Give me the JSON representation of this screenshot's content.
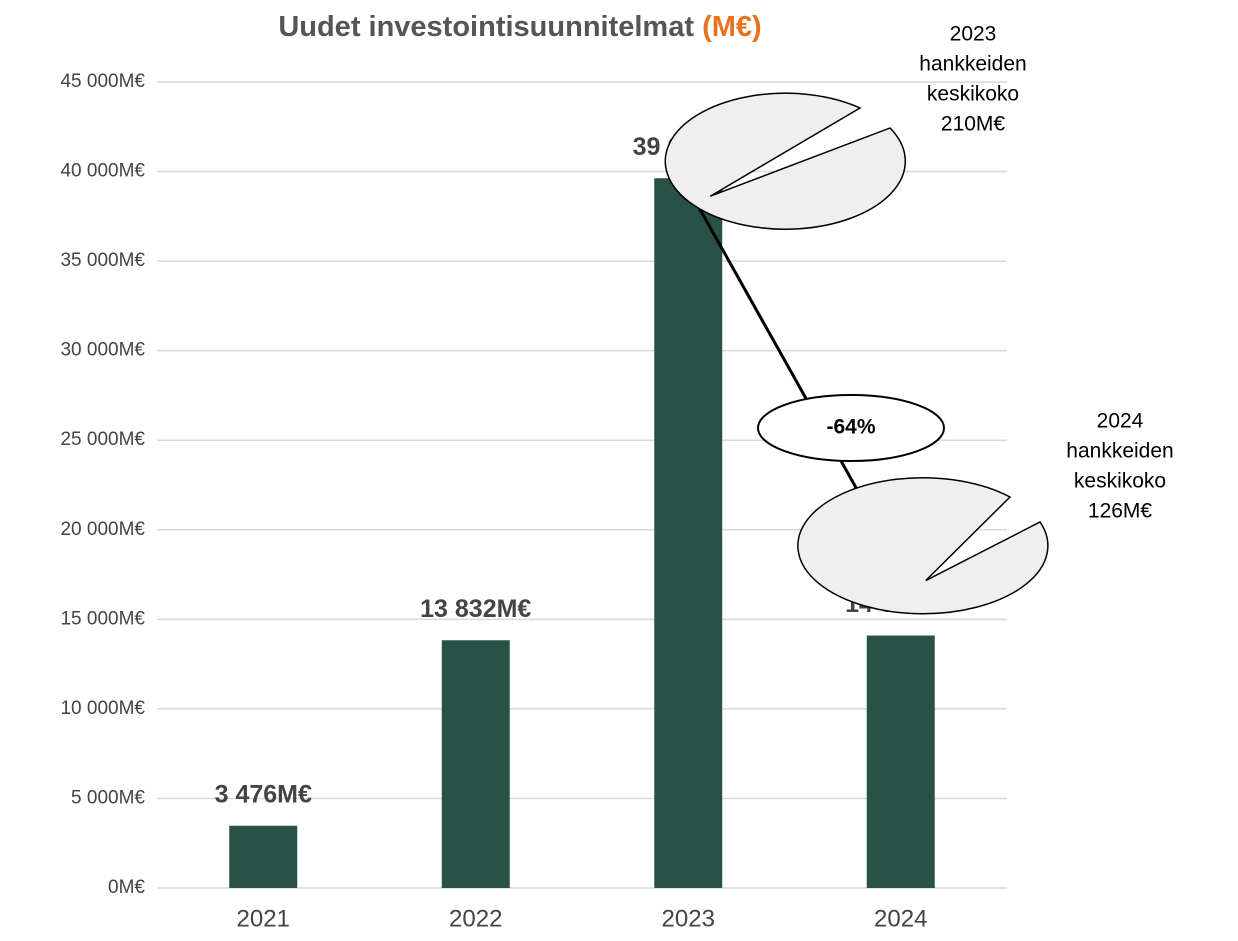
{
  "chart_data": {
    "type": "bar",
    "title": "Uudet investointisuunnitelmat",
    "title_unit": "(M€)",
    "title_unit_color": "#e8731e",
    "categories": [
      "2021",
      "2022",
      "2023",
      "2024"
    ],
    "values": [
      3476,
      13832,
      39628,
      14096
    ],
    "value_labels": [
      "3 476M€",
      "13 832M€",
      "39 628M€",
      "14 096M€"
    ],
    "color": "#285245",
    "ylim": [
      0,
      45000
    ],
    "yticks": [
      {
        "value": 0,
        "label": "0M€"
      },
      {
        "value": 5000,
        "label": "5 000M€"
      },
      {
        "value": 10000,
        "label": "10 000M€"
      },
      {
        "value": 15000,
        "label": "15 000M€"
      },
      {
        "value": 20000,
        "label": "20 000M€"
      },
      {
        "value": 25000,
        "label": "25 000M€"
      },
      {
        "value": 30000,
        "label": "30 000M€"
      },
      {
        "value": 35000,
        "label": "35 000M€"
      },
      {
        "value": 40000,
        "label": "40 000M€"
      },
      {
        "value": 45000,
        "label": "45 000M€"
      }
    ],
    "grid": true,
    "annotations": [
      {
        "lines": [
          "2023",
          "hankkeiden",
          "keskikoko",
          "210M€"
        ]
      },
      {
        "lines": [
          "2024",
          "hankkeiden",
          "keskikoko",
          "126M€"
        ]
      },
      {
        "lines": [
          "-64%"
        ]
      }
    ]
  }
}
